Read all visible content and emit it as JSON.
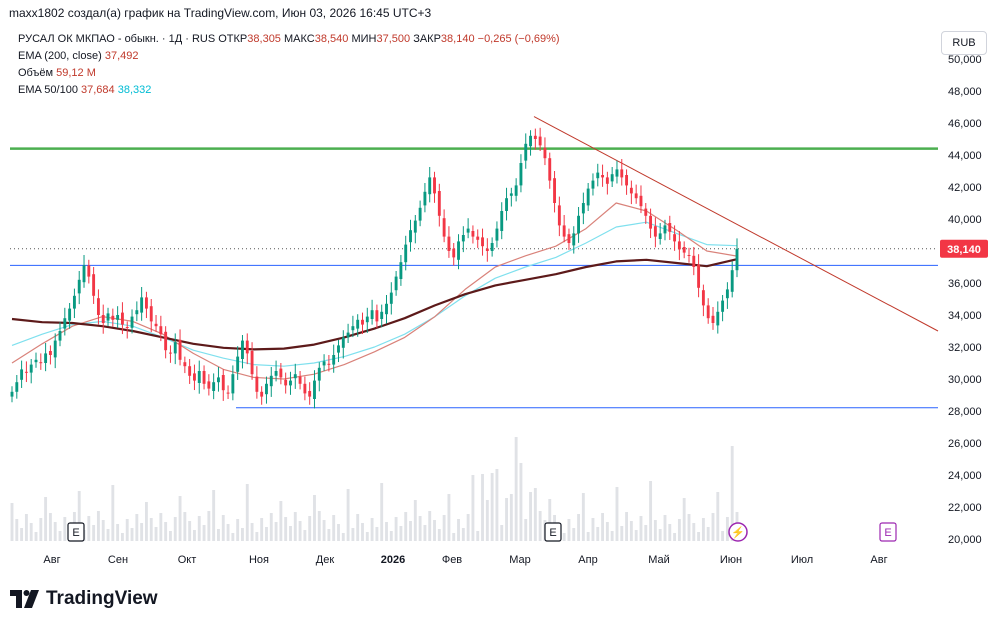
{
  "caption": "maxx1802 создал(а) график на TradingView.com, Июн 03, 2026 16:45 UTC+3",
  "legend": {
    "symbol": "РУСАЛ ОК МКПАО - обыкн. · 1Д · RUS",
    "open_label": "ОТКР",
    "open": "38,305",
    "high_label": "МАКС",
    "high": "38,540",
    "low_label": "МИН",
    "low": "37,500",
    "close_label": "ЗАКР",
    "close": "38,140",
    "change": "−0,265 (−0,69%)",
    "ema200_label": "EMA (200, close)",
    "ema200_value": "37,492",
    "volume_label": "Объём",
    "volume_value": "59,12 M",
    "ema50_100_label": "EMA 50/100",
    "ema50_value": "37,684",
    "ema100_value": "38,332"
  },
  "currency": "RUB",
  "brand": "TradingView",
  "colors": {
    "up": "#089981",
    "down": "#f23645",
    "ema200": "#5d1a1a",
    "ema50": "#d9827a",
    "ema100": "#7fe0ee",
    "support": "#2962ff",
    "resistance": "#4caf50",
    "trendline": "#c0392b"
  },
  "chart_data": {
    "type": "candlestick",
    "title": "РУСАЛ ОК МКПАО - обыкн. · 1Д · RUS",
    "y_ticks": [
      "20,000",
      "22,000",
      "24,000",
      "26,000",
      "28,000",
      "30,000",
      "32,000",
      "34,000",
      "36,000",
      "38,000",
      "40,000",
      "42,000",
      "44,000",
      "46,000",
      "48,000",
      "50,000"
    ],
    "ylim": [
      20,
      51
    ],
    "x_ticks": [
      "Авг",
      "Сен",
      "Окт",
      "Ноя",
      "Дек",
      "2026",
      "Фев",
      "Мар",
      "Апр",
      "Май",
      "Июн",
      "Июл",
      "Авг"
    ],
    "last_price_label": "38,140",
    "last_price": 38.14,
    "close_series": [
      29.2,
      29.8,
      30.6,
      30.4,
      30.9,
      31.2,
      31.0,
      31.6,
      31.5,
      32.4,
      33.0,
      33.8,
      34.4,
      35.2,
      36.2,
      37.1,
      36.4,
      35.2,
      34.0,
      33.5,
      34.1,
      33.7,
      34.0,
      33.4,
      33.2,
      33.9,
      34.3,
      35.1,
      34.4,
      33.6,
      33.3,
      32.8,
      31.8,
      31.6,
      32.3,
      31.2,
      30.8,
      30.2,
      29.9,
      30.5,
      29.7,
      29.4,
      29.8,
      30.1,
      29.3,
      29.1,
      30.3,
      31.4,
      32.4,
      31.6,
      30.3,
      29.2,
      28.9,
      29.7,
      30.2,
      30.5,
      30.1,
      29.6,
      29.9,
      30.3,
      29.7,
      29.1,
      28.9,
      29.9,
      30.7,
      31.1,
      30.9,
      31.5,
      32.1,
      32.6,
      32.9,
      33.3,
      33.7,
      33.4,
      33.9,
      34.3,
      33.6,
      34.2,
      34.7,
      35.4,
      36.4,
      37.3,
      38.4,
      39.3,
      39.9,
      40.7,
      41.7,
      42.6,
      41.6,
      40.2,
      38.9,
      38.0,
      37.6,
      38.6,
      39.0,
      39.4,
      38.9,
      38.7,
      38.3,
      38.0,
      38.5,
      39.4,
      40.5,
      41.3,
      41.6,
      42.1,
      43.5,
      44.7,
      45.2,
      45.0,
      44.6,
      43.8,
      42.4,
      41.0,
      39.6,
      38.9,
      38.5,
      39.1,
      40.2,
      41.0,
      41.9,
      42.4,
      42.9,
      42.6,
      42.2,
      42.8,
      43.1,
      42.6,
      42.1,
      41.6,
      41.3,
      40.8,
      40.2,
      39.4,
      38.9,
      39.1,
      39.6,
      39.2,
      38.6,
      38.1,
      37.9,
      37.7,
      37.0,
      35.7,
      34.6,
      33.8,
      33.5,
      34.2,
      34.9,
      35.6,
      36.8,
      38.14
    ],
    "ema200_approx": [
      33.75,
      33.55,
      33.5,
      33.3,
      33.0,
      32.6,
      32.2,
      31.95,
      31.85,
      31.9,
      32.15,
      32.6,
      33.15,
      33.8,
      34.6,
      35.3,
      35.85,
      36.2,
      36.55,
      37.0,
      37.35,
      37.45,
      37.25,
      37.05,
      37.49
    ],
    "ema50_approx": [
      31.0,
      32.2,
      33.3,
      33.9,
      33.6,
      32.8,
      31.6,
      30.6,
      30.1,
      30.0,
      30.3,
      30.9,
      31.7,
      32.6,
      33.9,
      35.6,
      37.0,
      37.7,
      38.3,
      39.4,
      41.0,
      40.5,
      39.3,
      38.0,
      37.68
    ],
    "ema100_approx": [
      32.1,
      32.8,
      33.4,
      33.6,
      33.3,
      32.6,
      31.8,
      31.3,
      30.9,
      30.8,
      31.0,
      31.4,
      32.0,
      32.8,
      33.9,
      35.2,
      36.3,
      37.0,
      37.6,
      38.5,
      39.5,
      39.8,
      39.1,
      38.4,
      38.33
    ],
    "levels": [
      {
        "price": 44.4,
        "kind": "resistance"
      },
      {
        "price": 37.1,
        "kind": "support"
      },
      {
        "price": 28.2,
        "kind": "support"
      }
    ],
    "trendline": {
      "from": {
        "price": 46.4,
        "month": "Мар"
      },
      "to": {
        "price": 33.0,
        "month": "Авг"
      }
    },
    "volume": "59,12 M",
    "events": [
      "E",
      "E",
      "⚡",
      "E"
    ]
  }
}
